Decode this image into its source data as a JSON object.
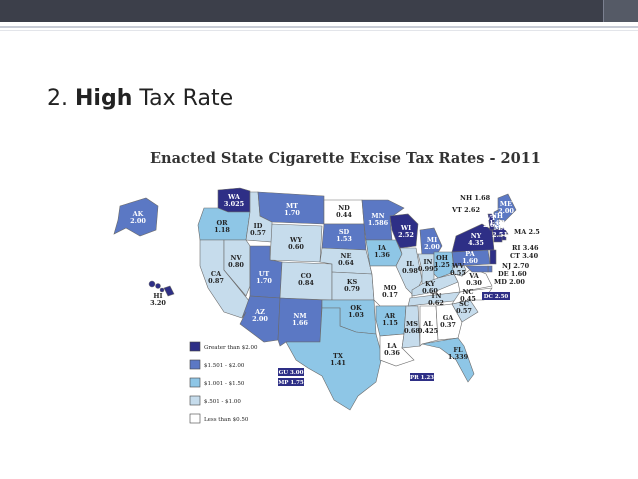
{
  "slide": {
    "title_number": "2.",
    "title_bold": "High",
    "title_rest": "Tax Rate"
  },
  "map": {
    "title": "Enacted State Cigarette Excise Tax Rates - 2011",
    "colors": {
      "over2": "#2e2f86",
      "r1501_2": "#5b78c4",
      "r1001_150": "#8ec6e6",
      "r501_1": "#c6dcec",
      "under050": "#ffffff"
    },
    "legend": [
      {
        "label": "Greater than $2.00",
        "color": "#2e2f86"
      },
      {
        "label": "$1.501 - $2.00",
        "color": "#5b78c4"
      },
      {
        "label": "$1.001 - $1.50",
        "color": "#8ec6e6"
      },
      {
        "label": "$.501 - $1.00",
        "color": "#c6dcec"
      },
      {
        "label": "Less than $0.50",
        "color": "#ffffff"
      }
    ],
    "states": [
      {
        "abbr": "WA",
        "rate": "3.025"
      },
      {
        "abbr": "OR",
        "rate": "1.18"
      },
      {
        "abbr": "CA",
        "rate": "0.87"
      },
      {
        "abbr": "NV",
        "rate": "0.80"
      },
      {
        "abbr": "ID",
        "rate": "0.57"
      },
      {
        "abbr": "MT",
        "rate": "1.70"
      },
      {
        "abbr": "WY",
        "rate": "0.60"
      },
      {
        "abbr": "UT",
        "rate": "1.70"
      },
      {
        "abbr": "AZ",
        "rate": "2.00"
      },
      {
        "abbr": "CO",
        "rate": "0.84"
      },
      {
        "abbr": "NM",
        "rate": "1.66"
      },
      {
        "abbr": "ND",
        "rate": "0.44"
      },
      {
        "abbr": "SD",
        "rate": "1.53"
      },
      {
        "abbr": "NE",
        "rate": "0.64"
      },
      {
        "abbr": "KS",
        "rate": "0.79"
      },
      {
        "abbr": "OK",
        "rate": "1.03"
      },
      {
        "abbr": "TX",
        "rate": "1.41"
      },
      {
        "abbr": "MN",
        "rate": "1.586"
      },
      {
        "abbr": "IA",
        "rate": "1.36"
      },
      {
        "abbr": "MO",
        "rate": "0.17"
      },
      {
        "abbr": "AR",
        "rate": "1.15"
      },
      {
        "abbr": "LA",
        "rate": "0.36"
      },
      {
        "abbr": "WI",
        "rate": "2.52"
      },
      {
        "abbr": "IL",
        "rate": "0.98"
      },
      {
        "abbr": "MS",
        "rate": "0.68"
      },
      {
        "abbr": "MI",
        "rate": "2.00"
      },
      {
        "abbr": "IN",
        "rate": "0.995"
      },
      {
        "abbr": "OH",
        "rate": "1.25"
      },
      {
        "abbr": "KY",
        "rate": "0.60"
      },
      {
        "abbr": "TN",
        "rate": "0.62"
      },
      {
        "abbr": "AL",
        "rate": "0.425"
      },
      {
        "abbr": "GA",
        "rate": "0.37"
      },
      {
        "abbr": "FL",
        "rate": "1.339"
      },
      {
        "abbr": "SC",
        "rate": "0.57"
      },
      {
        "abbr": "NC",
        "rate": "0.45"
      },
      {
        "abbr": "VA",
        "rate": "0.30"
      },
      {
        "abbr": "WV",
        "rate": "0.55"
      },
      {
        "abbr": "PA",
        "rate": "1.60"
      },
      {
        "abbr": "NY",
        "rate": "4.35"
      },
      {
        "abbr": "ME",
        "rate": "2.00"
      },
      {
        "abbr": "NH",
        "rate": "1.68"
      },
      {
        "abbr": "VT",
        "rate": "2.62"
      },
      {
        "abbr": "MA",
        "rate": "2.51"
      },
      {
        "abbr": "RI",
        "rate": "3.46"
      },
      {
        "abbr": "CT",
        "rate": "3.40"
      },
      {
        "abbr": "NJ",
        "rate": "2.70"
      },
      {
        "abbr": "DE",
        "rate": "1.60"
      },
      {
        "abbr": "MD",
        "rate": "2.00"
      },
      {
        "abbr": "DC",
        "rate": "2.50"
      },
      {
        "abbr": "AK",
        "rate": "2.00"
      },
      {
        "abbr": "HI",
        "rate": "3.20"
      },
      {
        "abbr": "GU",
        "rate": "3.00"
      },
      {
        "abbr": "MP",
        "rate": "1.75"
      },
      {
        "abbr": "PR",
        "rate": "1.23"
      }
    ]
  }
}
